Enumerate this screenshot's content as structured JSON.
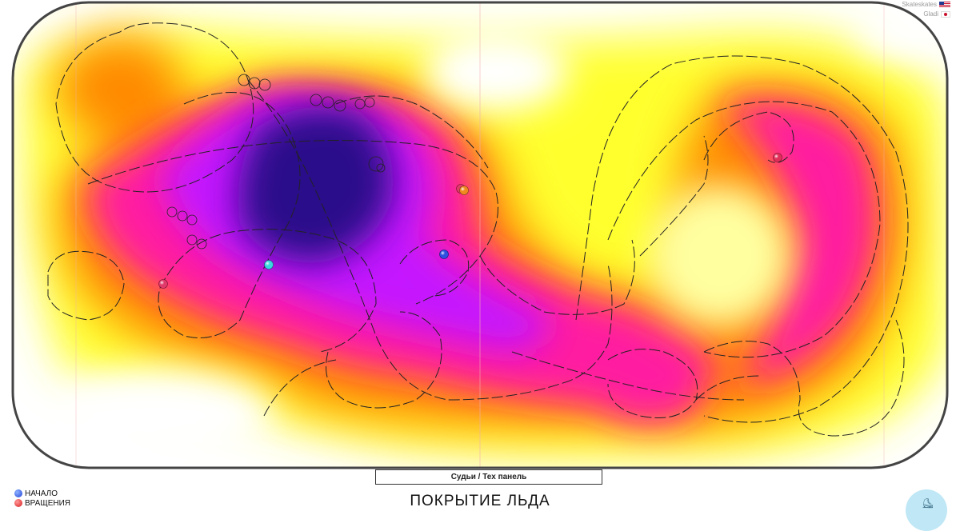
{
  "header": {
    "skaters": [
      {
        "name": "Skateskates",
        "flag": "flag-us-icon"
      },
      {
        "name": "Gladi",
        "flag": "flag-jp-icon"
      }
    ]
  },
  "rink": {
    "judges_label": "Судьи / Тех панель",
    "boards_color": "#444444"
  },
  "footer": {
    "title": "ПОКРЫТИЕ ЛЬДА",
    "legend": [
      {
        "label": "НАЧАЛО",
        "color": "#1f3fd8"
      },
      {
        "label": "ВРАЩЕНИЯ",
        "color": "#d81b1b"
      }
    ]
  },
  "heatmap": {
    "colors": {
      "low": "#ffff33",
      "mid": "#ff8c00",
      "high": "#ff1493",
      "higher": "#cc00ff",
      "max": "#2a0a8a"
    }
  },
  "markers": [
    {
      "name": "spin-marker",
      "color": "#e03a6a"
    },
    {
      "name": "spin-marker",
      "color": "#3ad6e0"
    },
    {
      "name": "spin-marker",
      "color": "#3050e0"
    },
    {
      "name": "spin-marker",
      "color": "#f08a20"
    },
    {
      "name": "spin-marker",
      "color": "#e0305a"
    }
  ]
}
